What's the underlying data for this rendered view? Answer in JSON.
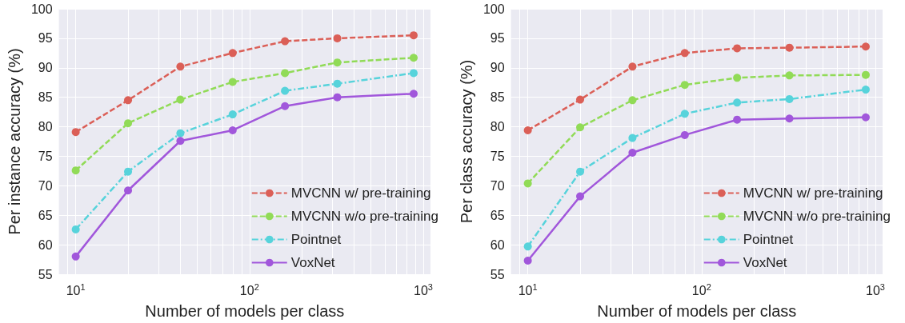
{
  "chart_data": [
    {
      "type": "line",
      "xlabel": "Number of models per class",
      "ylabel": "Per instance accuracy (%)",
      "log": "x",
      "grid": true,
      "legend": "bottom right",
      "marker": "circle",
      "x": [
        10,
        20,
        40,
        80,
        160,
        320,
        880
      ],
      "xlim": [
        8,
        1100
      ],
      "xticks": [
        {
          "value": 9,
          "label": null
        },
        {
          "value": 10,
          "label": "10$^{1}$"
        },
        {
          "value": 20,
          "label": null
        },
        {
          "value": 30,
          "label": null
        },
        {
          "value": 40,
          "label": null
        },
        {
          "value": 50,
          "label": null
        },
        {
          "value": 60,
          "label": null
        },
        {
          "value": 70,
          "label": null
        },
        {
          "value": 80,
          "label": null
        },
        {
          "value": 90,
          "label": null
        },
        {
          "value": 100,
          "label": "10$^{2}$"
        },
        {
          "value": 200,
          "label": null
        },
        {
          "value": 300,
          "label": null
        },
        {
          "value": 400,
          "label": null
        },
        {
          "value": 500,
          "label": null
        },
        {
          "value": 600,
          "label": null
        },
        {
          "value": 700,
          "label": null
        },
        {
          "value": 800,
          "label": null
        },
        {
          "value": 900,
          "label": null
        },
        {
          "value": 1000,
          "label": "10$^{3}$"
        }
      ],
      "ylim": [
        55,
        100
      ],
      "yticks": [
        55,
        60,
        65,
        70,
        75,
        80,
        85,
        90,
        95,
        100
      ],
      "series": [
        {
          "name": "MVCNN w/ pre-training",
          "color": "#db5f57",
          "line_style": "dashed",
          "values": [
            79.1,
            84.5,
            90.2,
            92.5,
            94.5,
            95.0,
            95.5
          ]
        },
        {
          "name": "MVCNN w/o pre-training",
          "color": "#91db57",
          "line_style": "dashed",
          "values": [
            72.6,
            80.6,
            84.6,
            87.6,
            89.1,
            90.9,
            91.7
          ]
        },
        {
          "name": "Pointnet",
          "color": "#57d3db",
          "line_style": "dashdot",
          "values": [
            62.6,
            72.4,
            78.9,
            82.1,
            86.1,
            87.3,
            89.1
          ]
        },
        {
          "name": "VoxNet",
          "color": "#a157db",
          "line_style": "solid",
          "values": [
            58.0,
            69.2,
            77.6,
            79.4,
            83.5,
            85.0,
            85.6
          ]
        }
      ]
    },
    {
      "type": "line",
      "xlabel": "Number of models per class",
      "ylabel": "Per class accuracy (%)",
      "log": "x",
      "grid": true,
      "legend": "bottom right",
      "marker": "circle",
      "x": [
        10,
        20,
        40,
        80,
        160,
        320,
        880
      ],
      "xlim": [
        8,
        1100
      ],
      "xticks": [
        {
          "value": 9,
          "label": null
        },
        {
          "value": 10,
          "label": "10$^{1}$"
        },
        {
          "value": 20,
          "label": null
        },
        {
          "value": 30,
          "label": null
        },
        {
          "value": 40,
          "label": null
        },
        {
          "value": 50,
          "label": null
        },
        {
          "value": 60,
          "label": null
        },
        {
          "value": 70,
          "label": null
        },
        {
          "value": 80,
          "label": null
        },
        {
          "value": 90,
          "label": null
        },
        {
          "value": 100,
          "label": "10$^{2}$"
        },
        {
          "value": 200,
          "label": null
        },
        {
          "value": 300,
          "label": null
        },
        {
          "value": 400,
          "label": null
        },
        {
          "value": 500,
          "label": null
        },
        {
          "value": 600,
          "label": null
        },
        {
          "value": 700,
          "label": null
        },
        {
          "value": 800,
          "label": null
        },
        {
          "value": 900,
          "label": null
        },
        {
          "value": 1000,
          "label": "10$^{3}$"
        }
      ],
      "ylim": [
        55,
        100
      ],
      "yticks": [
        55,
        60,
        65,
        70,
        75,
        80,
        85,
        90,
        95,
        100
      ],
      "series": [
        {
          "name": "MVCNN w/ pre-training",
          "color": "#db5f57",
          "line_style": "dashed",
          "values": [
            79.4,
            84.6,
            90.2,
            92.5,
            93.3,
            93.4,
            93.6
          ]
        },
        {
          "name": "MVCNN w/o pre-training",
          "color": "#91db57",
          "line_style": "dashed",
          "values": [
            70.4,
            79.9,
            84.5,
            87.1,
            88.3,
            88.7,
            88.8
          ]
        },
        {
          "name": "Pointnet",
          "color": "#57d3db",
          "line_style": "dashdot",
          "values": [
            59.7,
            72.4,
            78.1,
            82.2,
            84.1,
            84.7,
            86.3
          ]
        },
        {
          "name": "VoxNet",
          "color": "#a157db",
          "line_style": "solid",
          "values": [
            57.3,
            68.2,
            75.6,
            78.6,
            81.2,
            81.4,
            81.6
          ]
        }
      ]
    }
  ]
}
